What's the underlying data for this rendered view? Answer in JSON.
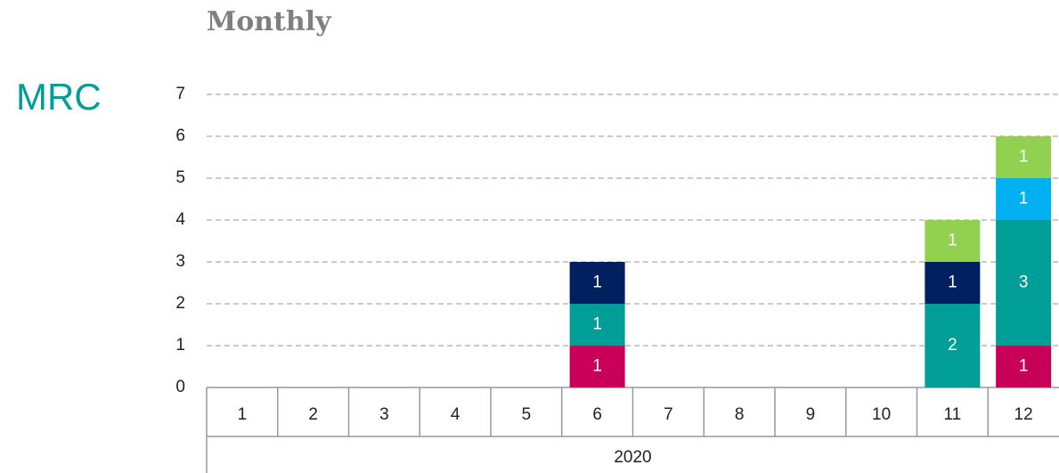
{
  "chart_data": {
    "type": "stacked_bar",
    "title": "Monthly",
    "ylabel": "MRC",
    "categories": [
      "1",
      "2",
      "3",
      "4",
      "5",
      "6",
      "7",
      "8",
      "9",
      "10",
      "11",
      "12"
    ],
    "group": "2020",
    "series": [
      {
        "color": "#c8005a",
        "values": [
          null,
          null,
          null,
          null,
          null,
          1,
          null,
          null,
          null,
          null,
          null,
          1
        ]
      },
      {
        "color": "#009e96",
        "values": [
          null,
          null,
          null,
          null,
          null,
          1,
          null,
          null,
          null,
          null,
          2,
          3
        ]
      },
      {
        "color": "#002060",
        "values": [
          null,
          null,
          null,
          null,
          null,
          1,
          null,
          null,
          null,
          null,
          1,
          null
        ]
      },
      {
        "color": "#00b0f0",
        "values": [
          null,
          null,
          null,
          null,
          null,
          null,
          null,
          null,
          null,
          null,
          null,
          1
        ]
      },
      {
        "color": "#92d050",
        "values": [
          null,
          null,
          null,
          null,
          null,
          null,
          null,
          null,
          null,
          null,
          1,
          1
        ]
      }
    ],
    "ylim": [
      0,
      7
    ],
    "yticks": [
      0,
      1,
      2,
      3,
      4,
      5,
      6,
      7
    ],
    "grid": true
  }
}
